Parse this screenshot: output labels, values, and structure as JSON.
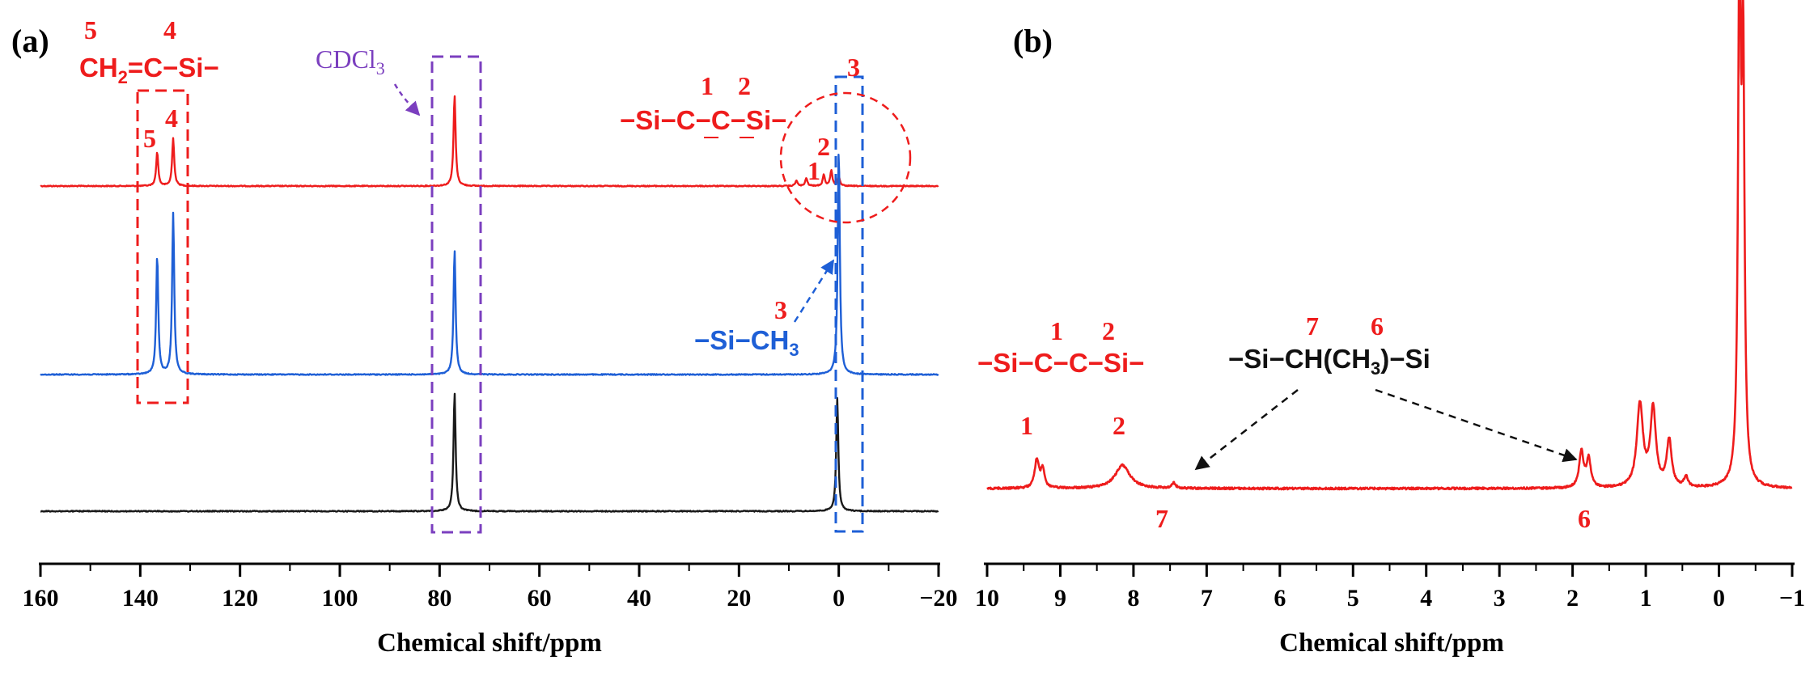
{
  "colors": {
    "red": "#ee1c1c",
    "blue": "#1e5fd6",
    "black": "#1a1a1a",
    "purple": "#7b3fbf",
    "annotation_black": "#111111"
  },
  "chart_data": [
    {
      "type": "line",
      "panel_label": "(a)",
      "xlabel": "Chemical shift/ppm",
      "ylabel": "",
      "xlim": [
        160,
        -20
      ],
      "x_ticks": [
        160,
        140,
        120,
        100,
        80,
        60,
        40,
        20,
        0,
        -20
      ],
      "x_tick_labels": [
        "160",
        "140",
        "120",
        "100",
        "80",
        "60",
        "40",
        "20",
        "0",
        "−20"
      ],
      "grid": false,
      "series": [
        {
          "color": "red",
          "peaks": [
            {
              "x": 136.6,
              "height": 0.3,
              "label": "5"
            },
            {
              "x": 133.4,
              "height": 0.42,
              "label": "4"
            },
            {
              "x": 77.0,
              "height": 0.8
            },
            {
              "x": 8.5,
              "height": 0.05
            },
            {
              "x": 6.5,
              "height": 0.07
            },
            {
              "x": 3.0,
              "height": 0.1,
              "label": "1"
            },
            {
              "x": 1.5,
              "height": 0.14,
              "label": "2"
            },
            {
              "x": 0.0,
              "height": 0.08
            }
          ]
        },
        {
          "color": "blue",
          "peaks": [
            {
              "x": 136.6,
              "height": 1.05
            },
            {
              "x": 133.4,
              "height": 1.42
            },
            {
              "x": 77.0,
              "height": 1.1
            },
            {
              "x": 0.0,
              "height": 2.0
            }
          ]
        },
        {
          "color": "black",
          "peaks": [
            {
              "x": 77.0,
              "height": 1.05
            },
            {
              "x": 0.3,
              "height": 1.0
            }
          ]
        }
      ],
      "annotations": {
        "vinyl_n5": "5",
        "vinyl_n4": "4",
        "vinyl_formula_a": "CH",
        "vinyl_formula_sub": "2",
        "vinyl_formula_b": "=C−Si−",
        "solvent_a": "CDCl",
        "solvent_sub": "3",
        "bridge_n1": "1",
        "bridge_n2": "2",
        "bridge_formula": "−Si−C−C−Si−",
        "methyl_top_n3": "3",
        "methyl_n3": "3",
        "methyl_formula_a": "−Si−CH",
        "methyl_formula_sub": "3",
        "peak_5": "5",
        "peak_4": "4",
        "peak_2": "2",
        "peak_1": "1"
      }
    },
    {
      "type": "line",
      "panel_label": "(b)",
      "xlabel": "Chemical shift/ppm",
      "ylabel": "",
      "xlim": [
        10,
        -1
      ],
      "x_ticks": [
        10,
        9,
        8,
        7,
        6,
        5,
        4,
        3,
        2,
        1,
        0,
        -1
      ],
      "x_tick_labels": [
        "10",
        "9",
        "8",
        "7",
        "6",
        "5",
        "4",
        "3",
        "2",
        "1",
        "0",
        "−1"
      ],
      "grid": false,
      "series": [
        {
          "color": "red",
          "peaks": [
            {
              "x": 9.32,
              "height": 0.055,
              "width": 0.035,
              "label": "1"
            },
            {
              "x": 9.24,
              "height": 0.035,
              "width": 0.03
            },
            {
              "x": 8.15,
              "height": 0.045,
              "width": 0.12,
              "label": "2"
            },
            {
              "x": 7.45,
              "height": 0.01,
              "width": 0.03,
              "label": "7"
            },
            {
              "x": 1.88,
              "height": 0.07,
              "width": 0.035,
              "label": "6"
            },
            {
              "x": 1.78,
              "height": 0.055,
              "width": 0.035
            },
            {
              "x": 1.08,
              "height": 0.16,
              "width": 0.05
            },
            {
              "x": 0.9,
              "height": 0.15,
              "width": 0.045
            },
            {
              "x": 0.68,
              "height": 0.09,
              "width": 0.04
            },
            {
              "x": 0.45,
              "height": 0.02,
              "width": 0.03
            },
            {
              "x": -0.28,
              "height": 1.0,
              "width": 0.022
            },
            {
              "x": -0.33,
              "height": 0.8,
              "width": 0.022
            }
          ]
        }
      ],
      "annotations": {
        "bridge_n1": "1",
        "bridge_n2": "2",
        "bridge_formula": "−Si−C−C−Si−",
        "branch_n7": "7",
        "branch_n6": "6",
        "branch_formula_a": "−Si−CH(CH",
        "branch_formula_sub": "3",
        "branch_formula_b": ")−Si",
        "peak_1": "1",
        "peak_2": "2",
        "peak_7": "7",
        "peak_6": "6"
      }
    }
  ]
}
